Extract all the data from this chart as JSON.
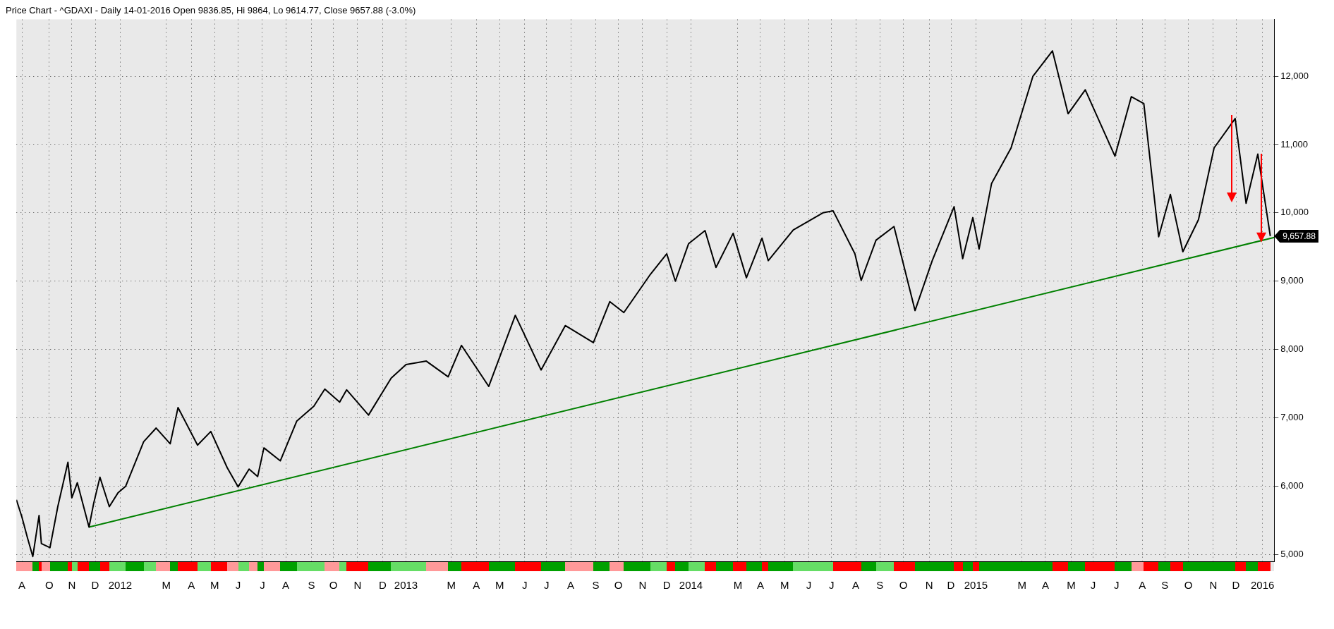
{
  "chart_data": {
    "type": "line",
    "title": "Price Chart - ^GDAXI - Daily 14-01-2016 Open 9836.85, Hi 9864, Lo 9614.77, Close 9657.88 (-3.0%)",
    "x": [
      "2011-08-22",
      "2011-08-29",
      "2011-09-05",
      "2011-09-12",
      "2011-09-20",
      "2011-09-23",
      "2011-10-04",
      "2011-10-14",
      "2011-10-27",
      "2011-11-01",
      "2011-11-08",
      "2011-11-23",
      "2011-11-29",
      "2011-12-07",
      "2011-12-19",
      "2011-12-30",
      "2012-01-09",
      "2012-02-01",
      "2012-02-17",
      "2012-03-06",
      "2012-03-16",
      "2012-04-10",
      "2012-04-27",
      "2012-05-18",
      "2012-06-01",
      "2012-06-15",
      "2012-06-26",
      "2012-07-04",
      "2012-07-25",
      "2012-08-15",
      "2012-09-06",
      "2012-09-20",
      "2012-10-09",
      "2012-10-18",
      "2012-11-15",
      "2012-12-14",
      "2013-01-02",
      "2013-01-28",
      "2013-02-25",
      "2013-03-14",
      "2013-04-18",
      "2013-05-22",
      "2013-06-24",
      "2013-07-25",
      "2013-08-30",
      "2013-09-20",
      "2013-10-08",
      "2013-11-11",
      "2013-12-02",
      "2013-12-13",
      "2013-12-30",
      "2014-01-20",
      "2014-02-03",
      "2014-02-25",
      "2014-03-14",
      "2014-04-03",
      "2014-04-11",
      "2014-05-13",
      "2014-06-20",
      "2014-07-03",
      "2014-07-31",
      "2014-08-08",
      "2014-08-27",
      "2014-09-19",
      "2014-10-16",
      "2014-11-07",
      "2014-12-05",
      "2014-12-16",
      "2014-12-29",
      "2015-01-06",
      "2015-01-22",
      "2015-02-16",
      "2015-03-16",
      "2015-04-10",
      "2015-04-30",
      "2015-05-22",
      "2015-06-29",
      "2015-07-20",
      "2015-08-05",
      "2015-08-24",
      "2015-09-08",
      "2015-09-24",
      "2015-10-14",
      "2015-11-03",
      "2015-11-30",
      "2015-12-14",
      "2015-12-29",
      "2016-01-14"
    ],
    "series": [
      {
        "type": "line",
        "color": "#000000",
        "values": [
          5800,
          5550,
          5250,
          4970,
          5570,
          5160,
          5100,
          5700,
          6350,
          5830,
          6050,
          5400,
          5750,
          6130,
          5700,
          5900,
          6000,
          6650,
          6850,
          6620,
          7150,
          6600,
          6800,
          6270,
          5990,
          6250,
          6140,
          6560,
          6370,
          6950,
          7170,
          7420,
          7230,
          7410,
          7040,
          7580,
          7780,
          7830,
          7600,
          8060,
          7460,
          8500,
          7700,
          8350,
          8100,
          8700,
          8540,
          9100,
          9400,
          9000,
          9550,
          9740,
          9200,
          9700,
          9050,
          9630,
          9300,
          9750,
          10000,
          10030,
          9400,
          9010,
          9600,
          9800,
          8570,
          9300,
          10090,
          9330,
          9930,
          9470,
          10430,
          10950,
          12000,
          12370,
          11450,
          11800,
          10830,
          11700,
          11600,
          9650,
          10270,
          9430,
          9900,
          10950,
          11380,
          10140,
          10860,
          9660
        ]
      },
      {
        "type": "line",
        "color": "#008000",
        "x": [
          "2011-11-23",
          "2016-01-19"
        ],
        "values": [
          5400,
          9640
        ]
      }
    ],
    "xlim": [
      "2011-08-22",
      "2016-01-19"
    ],
    "xticks": [
      {
        "value": "2011-08-29",
        "label": "A"
      },
      {
        "value": "2011-10-03",
        "label": "O"
      },
      {
        "value": "2011-11-01",
        "label": "N"
      },
      {
        "value": "2011-12-01",
        "label": "D"
      },
      {
        "value": "2012-01-02",
        "label": "2012"
      },
      {
        "value": "2012-03-01",
        "label": "M"
      },
      {
        "value": "2012-04-02",
        "label": "A"
      },
      {
        "value": "2012-05-02",
        "label": "M"
      },
      {
        "value": "2012-06-01",
        "label": "J"
      },
      {
        "value": "2012-07-02",
        "label": "J"
      },
      {
        "value": "2012-08-01",
        "label": "A"
      },
      {
        "value": "2012-09-03",
        "label": "S"
      },
      {
        "value": "2012-10-01",
        "label": "O"
      },
      {
        "value": "2012-11-01",
        "label": "N"
      },
      {
        "value": "2012-12-03",
        "label": "D"
      },
      {
        "value": "2013-01-02",
        "label": "2013"
      },
      {
        "value": "2013-03-01",
        "label": "M"
      },
      {
        "value": "2013-04-02",
        "label": "A"
      },
      {
        "value": "2013-05-02",
        "label": "M"
      },
      {
        "value": "2013-06-03",
        "label": "J"
      },
      {
        "value": "2013-07-01",
        "label": "J"
      },
      {
        "value": "2013-08-01",
        "label": "A"
      },
      {
        "value": "2013-09-02",
        "label": "S"
      },
      {
        "value": "2013-10-01",
        "label": "O"
      },
      {
        "value": "2013-11-01",
        "label": "N"
      },
      {
        "value": "2013-12-02",
        "label": "D"
      },
      {
        "value": "2014-01-02",
        "label": "2014"
      },
      {
        "value": "2014-03-03",
        "label": "M"
      },
      {
        "value": "2014-04-01",
        "label": "A"
      },
      {
        "value": "2014-05-02",
        "label": "M"
      },
      {
        "value": "2014-06-02",
        "label": "J"
      },
      {
        "value": "2014-07-01",
        "label": "J"
      },
      {
        "value": "2014-08-01",
        "label": "A"
      },
      {
        "value": "2014-09-01",
        "label": "S"
      },
      {
        "value": "2014-10-01",
        "label": "O"
      },
      {
        "value": "2014-11-03",
        "label": "N"
      },
      {
        "value": "2014-12-01",
        "label": "D"
      },
      {
        "value": "2015-01-02",
        "label": "2015"
      },
      {
        "value": "2015-03-02",
        "label": "M"
      },
      {
        "value": "2015-04-01",
        "label": "A"
      },
      {
        "value": "2015-05-04",
        "label": "M"
      },
      {
        "value": "2015-06-01",
        "label": "J"
      },
      {
        "value": "2015-07-01",
        "label": "J"
      },
      {
        "value": "2015-08-03",
        "label": "A"
      },
      {
        "value": "2015-09-01",
        "label": "S"
      },
      {
        "value": "2015-10-01",
        "label": "O"
      },
      {
        "value": "2015-11-02",
        "label": "N"
      },
      {
        "value": "2015-12-01",
        "label": "D"
      },
      {
        "value": "2016-01-04",
        "label": "2016"
      }
    ],
    "ylim": [
      4900,
      12830
    ],
    "yticks": [
      {
        "value": 5000,
        "label": "5,000"
      },
      {
        "value": 6000,
        "label": "6,000"
      },
      {
        "value": 7000,
        "label": "7,000"
      },
      {
        "value": 8000,
        "label": "8,000"
      },
      {
        "value": 9000,
        "label": "9,000"
      },
      {
        "value": 10000,
        "label": "10,000"
      },
      {
        "value": 11000,
        "label": "11,000"
      },
      {
        "value": 12000,
        "label": "12,000"
      }
    ],
    "annotations": [
      {
        "text": "9,657.88",
        "x": "2016-01-14",
        "y": 9657.88
      }
    ],
    "grid": true,
    "legend": false,
    "marker": "none",
    "line_style": "solid"
  }
}
